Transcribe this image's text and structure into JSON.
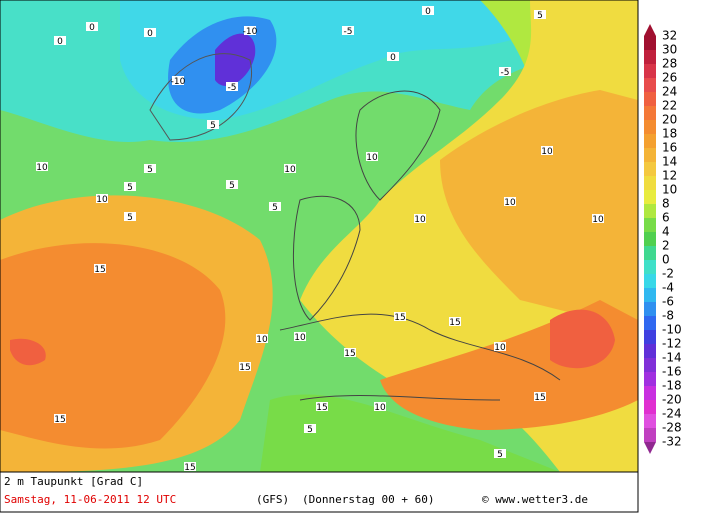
{
  "map": {
    "title": "2 m Taupunkt [Grad C]",
    "date": "Samstag, 11-06-2011  12 UTC",
    "model": "(GFS)",
    "run": "(Donnerstag 00 + 60)",
    "credit": "© www.wetter3.de",
    "labels": [
      0,
      0,
      0,
      -10,
      -10,
      -5,
      -5,
      0,
      5,
      -5,
      0,
      5,
      5,
      5,
      10,
      10,
      15,
      5,
      5,
      10,
      10,
      10,
      10,
      10,
      10,
      15,
      15,
      10,
      15,
      10,
      15,
      10,
      15,
      15,
      15,
      5,
      5,
      15,
      10,
      5
    ],
    "legend": {
      "levels": [
        32,
        30,
        28,
        26,
        24,
        22,
        20,
        18,
        16,
        14,
        12,
        10,
        8,
        6,
        4,
        2,
        0,
        -2,
        -4,
        -6,
        -8,
        -10,
        -12,
        -14,
        -16,
        -18,
        -20,
        -24,
        -28,
        -32
      ],
      "colors": [
        "#a01030",
        "#c0203c",
        "#d83448",
        "#e84c4c",
        "#f06040",
        "#f47838",
        "#f48c30",
        "#f4a030",
        "#f4b438",
        "#f4c840",
        "#f0dc40",
        "#e8ec40",
        "#b0e840",
        "#78dc48",
        "#50d050",
        "#40d890",
        "#40e0c8",
        "#38d8e8",
        "#30b8f0",
        "#3090f0",
        "#3068f0",
        "#4040e0",
        "#6030d8",
        "#8030d8",
        "#a030e0",
        "#c830e0",
        "#e030d0",
        "#e050e0",
        "#c040c0",
        "#902890"
      ]
    }
  }
}
